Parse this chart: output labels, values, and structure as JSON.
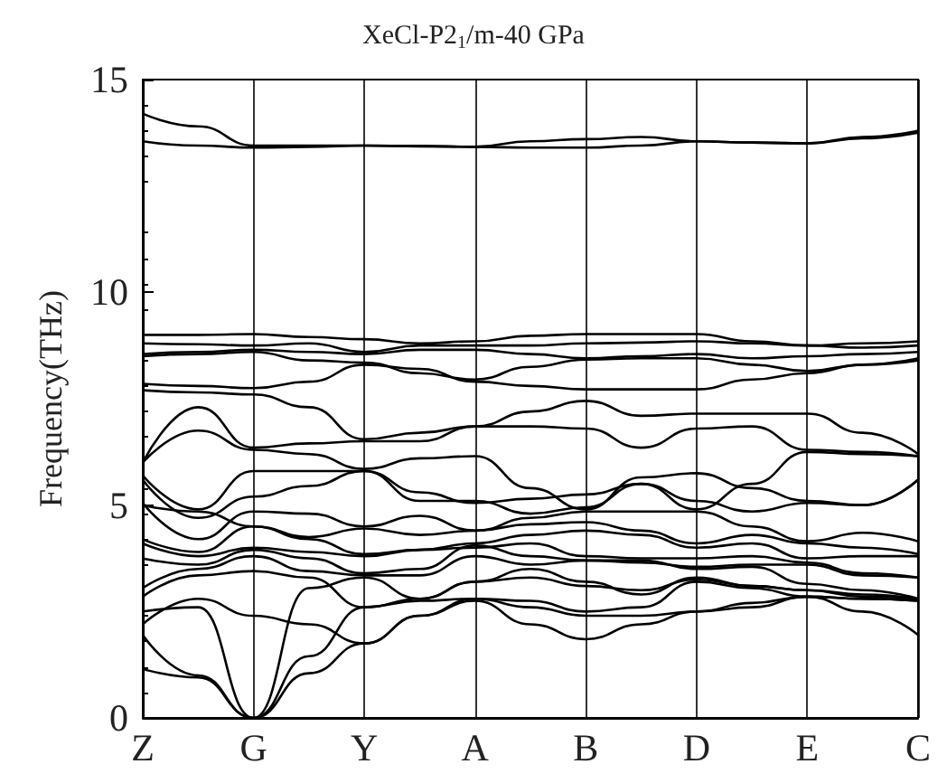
{
  "chart_data": {
    "type": "line",
    "title": "XeCl-P2$_{1}$/m-40 GPa",
    "ylabel": "Frequency(THz)",
    "categories": [
      "Z",
      null,
      "G",
      null,
      "Y",
      null,
      "A",
      null,
      "B",
      null,
      "D",
      null,
      "E",
      null,
      "C"
    ],
    "ylim": [
      0,
      15
    ],
    "yticks": [
      0,
      5,
      10,
      15
    ],
    "grid": "x",
    "marker": "none",
    "line_style": "solid",
    "series": [
      {
        "color": "#000000",
        "values": [
          1.15,
          0.95,
          0,
          1.05,
          1.75,
          2.4,
          2.75,
          2.2,
          1.85,
          2.2,
          2.5,
          2.6,
          2.85,
          2.5,
          1.95
        ]
      },
      {
        "color": "#000000",
        "values": [
          1.95,
          1.0,
          0,
          1.45,
          2.6,
          2.75,
          2.8,
          2.6,
          2.4,
          2.4,
          2.5,
          2.7,
          2.85,
          2.8,
          2.75
        ]
      },
      {
        "color": "#000000",
        "values": [
          2.5,
          2.6,
          0,
          3.05,
          3.3,
          2.8,
          3.2,
          3.5,
          3.2,
          2.9,
          3.3,
          3.1,
          3.0,
          2.85,
          2.8
        ]
      },
      {
        "color": "#000000",
        "values": [
          2.2,
          2.8,
          2.4,
          2.2,
          1.75,
          2.4,
          2.8,
          2.75,
          2.5,
          2.6,
          3.2,
          3.05,
          2.85,
          2.8,
          2.75
        ]
      },
      {
        "color": "#000000",
        "values": [
          2.85,
          3.35,
          3.45,
          3.3,
          2.6,
          2.8,
          3.2,
          3.3,
          3.1,
          3.0,
          3.25,
          3.1,
          3.0,
          2.9,
          2.8
        ]
      },
      {
        "color": "#000000",
        "values": [
          3.05,
          3.5,
          3.8,
          3.45,
          3.35,
          3.35,
          3.8,
          3.6,
          3.7,
          3.7,
          3.5,
          3.55,
          3.15,
          3.0,
          2.8
        ]
      },
      {
        "color": "#000000",
        "values": [
          3.75,
          3.6,
          3.95,
          3.75,
          3.4,
          3.5,
          4.05,
          3.8,
          3.7,
          3.65,
          3.55,
          3.6,
          3.6,
          3.35,
          3.3
        ]
      },
      {
        "color": "#000000",
        "values": [
          4.1,
          3.8,
          4.0,
          3.9,
          3.8,
          3.95,
          4.0,
          4.1,
          3.8,
          3.75,
          3.75,
          3.8,
          3.65,
          3.4,
          3.3
        ]
      },
      {
        "color": "#000000",
        "values": [
          4.2,
          3.9,
          4.5,
          4.2,
          3.85,
          3.95,
          4.1,
          4.3,
          4.4,
          4.3,
          4.0,
          4.1,
          3.75,
          3.8,
          3.8
        ]
      },
      {
        "color": "#000000",
        "values": [
          5.0,
          4.85,
          4.5,
          4.25,
          4.45,
          4.3,
          4.4,
          4.55,
          4.6,
          4.4,
          4.1,
          4.3,
          4.1,
          4.0,
          3.85
        ]
      },
      {
        "color": "#000000",
        "values": [
          5.05,
          4.2,
          4.85,
          4.8,
          4.5,
          4.75,
          4.4,
          4.7,
          4.85,
          4.85,
          4.85,
          4.5,
          4.15,
          4.35,
          4.15
        ]
      },
      {
        "color": "#000000",
        "values": [
          5.6,
          4.7,
          5.2,
          5.45,
          5.8,
          5.1,
          5.1,
          4.8,
          4.95,
          5.5,
          5.1,
          4.85,
          5.05,
          5.0,
          5.6
        ]
      },
      {
        "color": "#000000",
        "values": [
          5.7,
          4.9,
          5.8,
          5.8,
          5.8,
          5.3,
          5.05,
          5.15,
          5.25,
          5.5,
          4.9,
          5.5,
          6.25,
          6.2,
          6.15
        ]
      },
      {
        "color": "#000000",
        "values": [
          6.0,
          6.75,
          6.3,
          6.2,
          5.85,
          6.1,
          6.15,
          5.4,
          4.9,
          5.65,
          5.75,
          5.4,
          5.1,
          5.0,
          5.6
        ]
      },
      {
        "color": "#000000",
        "values": [
          6.0,
          7.3,
          6.35,
          6.45,
          6.5,
          6.5,
          6.85,
          6.85,
          6.8,
          6.35,
          6.8,
          6.85,
          6.3,
          6.25,
          6.15
        ]
      },
      {
        "color": "#000000",
        "values": [
          7.7,
          7.65,
          7.6,
          7.3,
          6.55,
          6.7,
          6.85,
          7.2,
          7.45,
          7.1,
          7.15,
          7.15,
          7.15,
          6.7,
          6.2
        ]
      },
      {
        "color": "#000000",
        "values": [
          7.85,
          7.8,
          7.75,
          7.9,
          8.3,
          8.2,
          7.9,
          7.8,
          7.72,
          7.72,
          7.72,
          7.95,
          8.1,
          8.3,
          8.4
        ]
      },
      {
        "color": "#000000",
        "values": [
          8.5,
          8.55,
          8.6,
          8.4,
          8.35,
          8.1,
          7.95,
          8.25,
          8.42,
          8.45,
          8.45,
          8.3,
          8.15,
          8.3,
          8.45
        ]
      },
      {
        "color": "#000000",
        "values": [
          8.55,
          8.6,
          8.65,
          8.6,
          8.55,
          8.65,
          8.65,
          8.55,
          8.45,
          8.5,
          8.55,
          8.45,
          8.5,
          8.55,
          8.6
        ]
      },
      {
        "color": "#000000",
        "values": [
          8.8,
          8.78,
          8.75,
          8.8,
          8.6,
          8.75,
          8.75,
          8.75,
          8.8,
          8.82,
          8.85,
          8.8,
          8.75,
          8.7,
          8.75
        ]
      },
      {
        "color": "#000000",
        "values": [
          9.0,
          9.0,
          9.02,
          8.95,
          8.9,
          8.8,
          8.85,
          8.98,
          9.02,
          9.02,
          9.02,
          8.85,
          8.75,
          8.8,
          8.85
        ]
      },
      {
        "color": "#000000",
        "values": [
          13.55,
          13.45,
          13.4,
          13.42,
          13.45,
          13.43,
          13.42,
          13.4,
          13.4,
          13.45,
          13.55,
          13.52,
          13.5,
          13.62,
          13.75
        ]
      },
      {
        "color": "#000000",
        "values": [
          14.2,
          13.9,
          13.45,
          13.45,
          13.45,
          13.44,
          13.42,
          13.55,
          13.6,
          13.65,
          13.55,
          13.52,
          13.5,
          13.65,
          13.8
        ]
      }
    ]
  }
}
